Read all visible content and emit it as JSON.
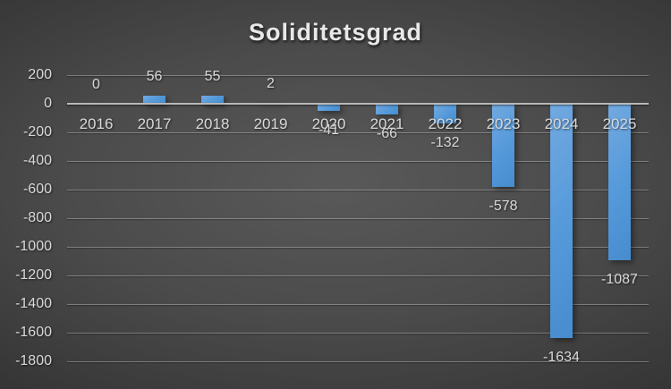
{
  "chart_data": {
    "type": "bar",
    "title": "Soliditetsgrad",
    "categories": [
      "2016",
      "2017",
      "2018",
      "2019",
      "2020",
      "2021",
      "2022",
      "2023",
      "2024",
      "2025"
    ],
    "values": [
      0,
      56,
      55,
      2,
      -41,
      -66,
      -132,
      -578,
      -1634,
      -1087
    ],
    "data_labels": [
      "0",
      "56",
      "55",
      "2",
      "-41",
      "-66",
      "-132",
      "-578",
      "-1634",
      "-1087"
    ],
    "yticks": [
      200,
      0,
      -200,
      -400,
      -600,
      -800,
      -1000,
      -1200,
      -1400,
      -1600,
      -1800
    ],
    "ylim": [
      -1800,
      200
    ],
    "ytick_step": 200,
    "xlabel": "",
    "ylabel": "",
    "grid": true,
    "legend": false,
    "colors": {
      "bar": "#5499DA",
      "bar_light": "#72A9E0",
      "bar_dark": "#478CCE",
      "background_center": "#595959",
      "background_edge": "#232323",
      "gridline": "rgba(255,255,255,0.30)",
      "zero_axis": "#b9b9b9",
      "label_text": "#d9d9d9",
      "title_text": "#e8e8e8"
    }
  }
}
